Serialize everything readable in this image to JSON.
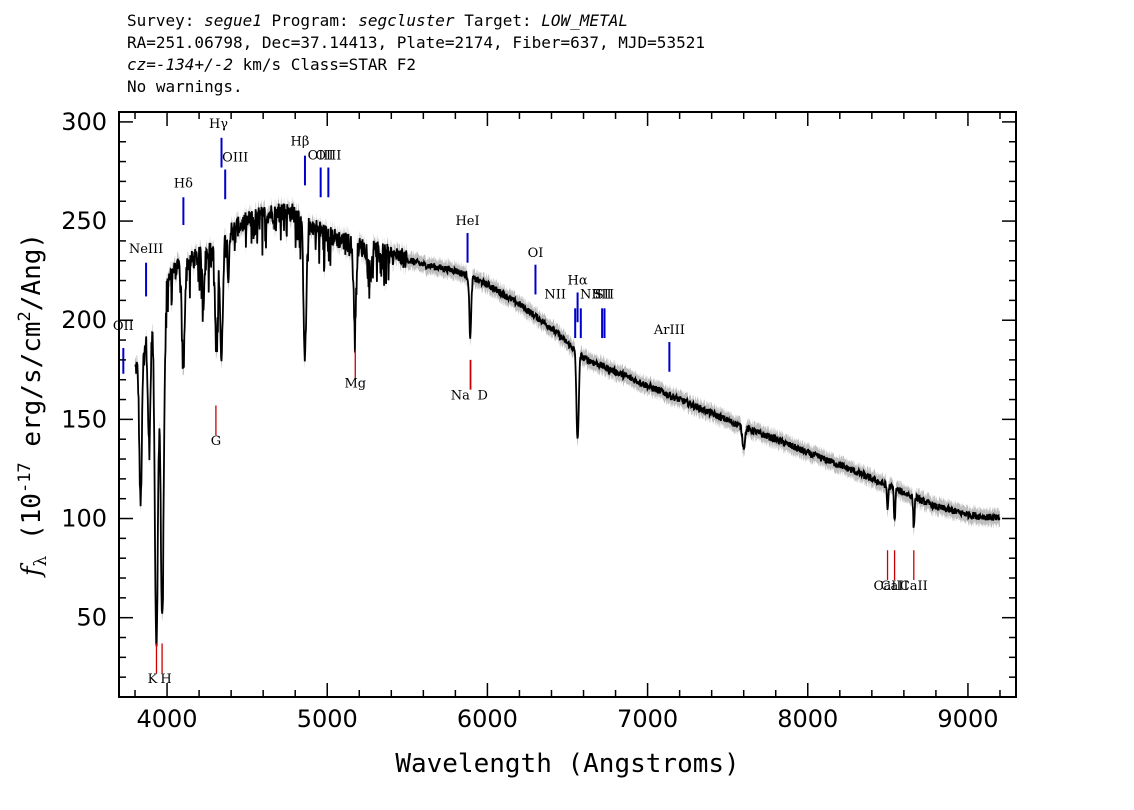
{
  "header": {
    "survey_label": "Survey:",
    "survey": "segue1",
    "program_label": "Program:",
    "program": "segcluster",
    "target_label": "Target:",
    "target": "LOW_METAL",
    "line2": "RA=251.06798, Dec=37.14413, Plate=2174, Fiber=637, MJD=53521",
    "cz_prefix": "cz=",
    "cz_value": "-134+/-2",
    "cz_suffix": " km/s Class=STAR F2",
    "line4": "No warnings."
  },
  "chart_data": {
    "type": "line",
    "xlabel": "Wavelength (Angstroms)",
    "ylabel": "f_λ (10^-17 erg/s/cm^2/Ang)",
    "xlim": [
      3700,
      9300
    ],
    "ylim": [
      10,
      305
    ],
    "x_ticks": [
      4000,
      5000,
      6000,
      7000,
      8000,
      9000
    ],
    "y_ticks": [
      50,
      100,
      150,
      200,
      250,
      300
    ],
    "x_range_data": [
      3800,
      9200
    ],
    "colors": {
      "spectrum": "#000000",
      "error_band": "#bdbdbd",
      "emission": "#0000cc",
      "absorption": "#cc0000"
    },
    "continuum": [
      [
        3800,
        175
      ],
      [
        3850,
        185
      ],
      [
        3900,
        200
      ],
      [
        4000,
        222
      ],
      [
        4100,
        228
      ],
      [
        4200,
        232
      ],
      [
        4300,
        236
      ],
      [
        4400,
        245
      ],
      [
        4500,
        250
      ],
      [
        4600,
        253
      ],
      [
        4700,
        255
      ],
      [
        4800,
        254
      ],
      [
        4900,
        248
      ],
      [
        5000,
        243
      ],
      [
        5200,
        237
      ],
      [
        5400,
        233
      ],
      [
        5600,
        228
      ],
      [
        5800,
        225
      ],
      [
        6000,
        218
      ],
      [
        6200,
        208
      ],
      [
        6400,
        196
      ],
      [
        6600,
        181
      ],
      [
        6800,
        174
      ],
      [
        7000,
        167
      ],
      [
        7200,
        160
      ],
      [
        7400,
        153
      ],
      [
        7600,
        146
      ],
      [
        7800,
        140
      ],
      [
        8000,
        133
      ],
      [
        8200,
        127
      ],
      [
        8400,
        120
      ],
      [
        8600,
        113
      ],
      [
        8800,
        106
      ],
      [
        9000,
        102
      ],
      [
        9200,
        100
      ]
    ],
    "absorption_features": [
      {
        "x": 3835,
        "depth": 75,
        "width": 8
      },
      {
        "x": 3889,
        "depth": 60,
        "width": 8
      },
      {
        "x": 3934,
        "depth": 170,
        "width": 10
      },
      {
        "x": 3970,
        "depth": 165,
        "width": 10
      },
      {
        "x": 4101,
        "depth": 55,
        "width": 8
      },
      {
        "x": 4226,
        "depth": 25,
        "width": 5
      },
      {
        "x": 4308,
        "depth": 55,
        "width": 8
      },
      {
        "x": 4340,
        "depth": 60,
        "width": 8
      },
      {
        "x": 4383,
        "depth": 20,
        "width": 5
      },
      {
        "x": 4861,
        "depth": 68,
        "width": 9
      },
      {
        "x": 5172,
        "depth": 40,
        "width": 8
      },
      {
        "x": 5270,
        "depth": 15,
        "width": 5
      },
      {
        "x": 5893,
        "depth": 30,
        "width": 6
      },
      {
        "x": 6563,
        "depth": 45,
        "width": 7
      },
      {
        "x": 7600,
        "depth": 10,
        "width": 8
      },
      {
        "x": 8498,
        "depth": 12,
        "width": 4
      },
      {
        "x": 8542,
        "depth": 17,
        "width": 4
      },
      {
        "x": 8662,
        "depth": 16,
        "width": 4
      }
    ],
    "emission_lines": [
      {
        "label": "OII",
        "x": 3727,
        "y_top": 186,
        "y_bottom": 173,
        "label_y": 195,
        "label_dx": 0
      },
      {
        "label": "NeIII",
        "x": 3869,
        "y_top": 229,
        "y_bottom": 212,
        "label_y": 234,
        "label_dx": 0
      },
      {
        "label": "Hδ",
        "x": 4102,
        "y_top": 262,
        "y_bottom": 248,
        "label_y": 267,
        "label_dx": 0
      },
      {
        "label": "Hγ",
        "x": 4340,
        "y_top": 292,
        "y_bottom": 277,
        "label_y": 297,
        "label_dx": -3
      },
      {
        "label": "OIII",
        "x": 4363,
        "y_top": 276,
        "y_bottom": 261,
        "label_y": 280,
        "label_dx": 10
      },
      {
        "label": "Hβ",
        "x": 4861,
        "y_top": 283,
        "y_bottom": 268,
        "label_y": 288,
        "label_dx": -5
      },
      {
        "label": "OIII",
        "x": 4959,
        "y_top": 277,
        "y_bottom": 262,
        "label_y": 281,
        "label_dx": 0
      },
      {
        "label": "OIII",
        "x": 5007,
        "y_top": 277,
        "y_bottom": 262,
        "label_y": 281,
        "label_dx": 0
      },
      {
        "label": "HeI",
        "x": 5876,
        "y_top": 244,
        "y_bottom": 229,
        "label_y": 248,
        "label_dx": 0
      },
      {
        "label": "OI",
        "x": 6300,
        "y_top": 228,
        "y_bottom": 213,
        "label_y": 232,
        "label_dx": 0
      },
      {
        "label": "NII",
        "x": 6548,
        "y_top": 206,
        "y_bottom": 191,
        "label_y": 211,
        "label_dx": -20
      },
      {
        "label": "Hα",
        "x": 6563,
        "y_top": 214,
        "y_bottom": 199,
        "label_y": 218,
        "label_dx": 0
      },
      {
        "label": "NII",
        "x": 6583,
        "y_top": 206,
        "y_bottom": 191,
        "label_y": 211,
        "label_dx": 10
      },
      {
        "label": "SII",
        "x": 6716,
        "y_top": 206,
        "y_bottom": 191,
        "label_y": 211,
        "label_dx": 0
      },
      {
        "label": "SII",
        "x": 6731,
        "y_top": 206,
        "y_bottom": 191,
        "label_y": 211,
        "label_dx": 0
      },
      {
        "label": "ArIII",
        "x": 7136,
        "y_top": 189,
        "y_bottom": 174,
        "label_y": 193,
        "label_dx": 0
      }
    ],
    "absorption_lines": [
      {
        "label": "K",
        "x": 3934,
        "y_top": 37,
        "y_bottom": 22,
        "label_y": 17,
        "label_dx": -4
      },
      {
        "label": "H",
        "x": 3969,
        "y_top": 37,
        "y_bottom": 22,
        "label_y": 17,
        "label_dx": 4
      },
      {
        "label": "G",
        "x": 4305,
        "y_top": 157,
        "y_bottom": 142,
        "label_y": 137,
        "label_dx": 0
      },
      {
        "label": "Mg",
        "x": 5175,
        "y_top": 185,
        "y_bottom": 170,
        "label_y": 166,
        "label_dx": 0
      },
      {
        "label": "Na",
        "x": 5893,
        "y_top": 180,
        "y_bottom": 165,
        "label_y": 160,
        "label_dx": -10
      },
      {
        "label": "D",
        "x": 5896,
        "y_top": 180,
        "y_bottom": 165,
        "label_y": 160,
        "label_dx": 12
      },
      {
        "label": "CaII",
        "x": 8498,
        "y_top": 84,
        "y_bottom": 69,
        "label_y": 64,
        "label_dx": 0
      },
      {
        "label": "CaII",
        "x": 8542,
        "y_top": 84,
        "y_bottom": 69,
        "label_y": 64,
        "label_dx": 0
      },
      {
        "label": "CaII",
        "x": 8662,
        "y_top": 84,
        "y_bottom": 69,
        "label_y": 64,
        "label_dx": 0
      }
    ]
  }
}
